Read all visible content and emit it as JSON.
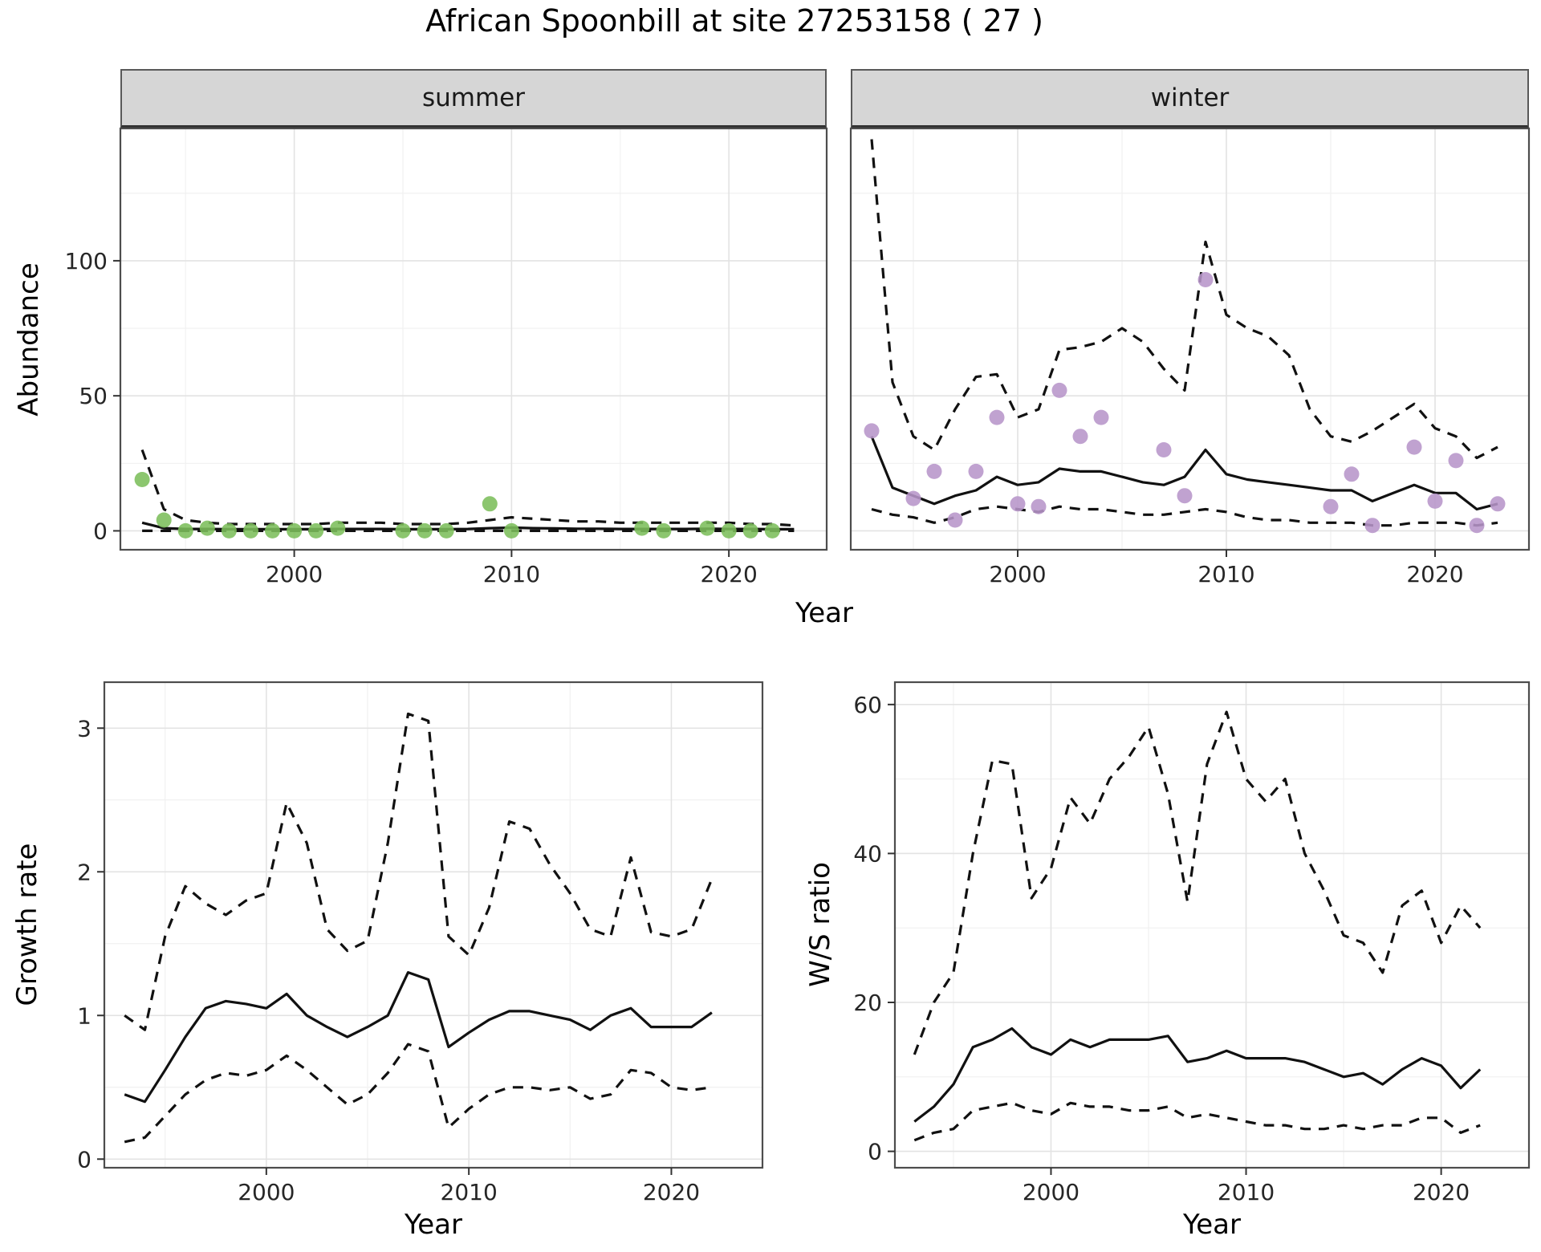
{
  "title": "African Spoonbill at site 27253158 ( 27 )",
  "colors": {
    "line": "#111111",
    "summer_points": "#7CBE5B",
    "winter_points": "#B795C9",
    "strip_background": "#D6D6D6",
    "panel_border": "#4D4D4D",
    "grid_major": "#E3E3E3",
    "grid_minor": "#F1F1F1"
  },
  "chart_data": [
    {
      "id": "abundance-summer",
      "type": "line",
      "facet": "summer",
      "xlabel": "Year",
      "ylabel": "Abundance",
      "xlim": [
        1992,
        2024.5
      ],
      "ylim": [
        -7,
        149
      ],
      "xticks": [
        2000,
        2010,
        2020
      ],
      "yticks": [
        0,
        50,
        100
      ],
      "series": [
        {
          "name": "upper-ci",
          "style": "dashed",
          "x": [
            1993,
            1994,
            1995,
            1996,
            1997,
            1998,
            1999,
            2000,
            2001,
            2002,
            2003,
            2004,
            2005,
            2006,
            2007,
            2008,
            2009,
            2010,
            2011,
            2012,
            2013,
            2014,
            2015,
            2016,
            2017,
            2018,
            2019,
            2020,
            2021,
            2022,
            2023
          ],
          "y": [
            30,
            8,
            4,
            3,
            2.5,
            2.5,
            2.5,
            2.5,
            2.5,
            3,
            3,
            3,
            2.5,
            2.5,
            2.5,
            3,
            4,
            5,
            4.5,
            4,
            3.5,
            3.5,
            3,
            3,
            3,
            3,
            3,
            3,
            2.5,
            2.5,
            2
          ]
        },
        {
          "name": "mean",
          "style": "solid",
          "x": [
            1993,
            1994,
            1995,
            1996,
            1997,
            1998,
            1999,
            2000,
            2001,
            2002,
            2003,
            2004,
            2005,
            2006,
            2007,
            2008,
            2009,
            2010,
            2011,
            2012,
            2013,
            2014,
            2015,
            2016,
            2017,
            2018,
            2019,
            2020,
            2021,
            2022,
            2023
          ],
          "y": [
            3,
            1,
            0.7,
            0.7,
            0.6,
            0.6,
            0.6,
            0.6,
            0.6,
            0.7,
            0.7,
            0.7,
            0.6,
            0.6,
            0.6,
            0.7,
            1,
            1.2,
            1,
            0.9,
            0.8,
            0.8,
            0.7,
            0.7,
            0.7,
            0.7,
            0.8,
            0.7,
            0.7,
            0.6,
            0.6
          ]
        },
        {
          "name": "lower-ci",
          "style": "dashed",
          "x": [
            1993,
            1994,
            1995,
            1996,
            1997,
            1998,
            1999,
            2000,
            2001,
            2002,
            2003,
            2004,
            2005,
            2006,
            2007,
            2008,
            2009,
            2010,
            2011,
            2012,
            2013,
            2014,
            2015,
            2016,
            2017,
            2018,
            2019,
            2020,
            2021,
            2022,
            2023
          ],
          "y": [
            0,
            0,
            0,
            0,
            0,
            0,
            0,
            0,
            0,
            0,
            0,
            0,
            0,
            0,
            0,
            0,
            0,
            0,
            0,
            0,
            0,
            0,
            0,
            0,
            0,
            0,
            0,
            0,
            0,
            0,
            0
          ]
        }
      ],
      "points": {
        "name": "observed-counts",
        "color": "#7CBE5B",
        "x": [
          1993,
          1994,
          1995,
          1996,
          1997,
          1998,
          1999,
          2000,
          2001,
          2002,
          2005,
          2006,
          2007,
          2009,
          2010,
          2016,
          2017,
          2019,
          2020,
          2021,
          2022
        ],
        "y": [
          19,
          4,
          0,
          1,
          0,
          0,
          0,
          0,
          0,
          1,
          0,
          0,
          0,
          10,
          0,
          1,
          0,
          1,
          0,
          0,
          0
        ]
      }
    },
    {
      "id": "abundance-winter",
      "type": "line",
      "facet": "winter",
      "xlabel": "Year",
      "ylabel": "Abundance",
      "xlim": [
        1992,
        2024.5
      ],
      "ylim": [
        -7,
        149
      ],
      "xticks": [
        2000,
        2010,
        2020
      ],
      "yticks": [
        0,
        50,
        100
      ],
      "series": [
        {
          "name": "upper-ci",
          "style": "dashed",
          "x": [
            1993,
            1994,
            1995,
            1996,
            1997,
            1998,
            1999,
            2000,
            2001,
            2002,
            2003,
            2004,
            2005,
            2006,
            2007,
            2008,
            2009,
            2010,
            2011,
            2012,
            2013,
            2014,
            2015,
            2016,
            2017,
            2018,
            2019,
            2020,
            2021,
            2022,
            2023
          ],
          "y": [
            145,
            55,
            35,
            30,
            45,
            57,
            58,
            42,
            45,
            67,
            68,
            70,
            75,
            70,
            60,
            52,
            107,
            80,
            75,
            72,
            65,
            45,
            35,
            33,
            37,
            42,
            47,
            38,
            35,
            27,
            31
          ]
        },
        {
          "name": "mean",
          "style": "solid",
          "x": [
            1993,
            1994,
            1995,
            1996,
            1997,
            1998,
            1999,
            2000,
            2001,
            2002,
            2003,
            2004,
            2005,
            2006,
            2007,
            2008,
            2009,
            2010,
            2011,
            2012,
            2013,
            2014,
            2015,
            2016,
            2017,
            2018,
            2019,
            2020,
            2021,
            2022,
            2023
          ],
          "y": [
            35,
            16,
            13,
            10,
            13,
            15,
            20,
            17,
            18,
            23,
            22,
            22,
            20,
            18,
            17,
            20,
            30,
            21,
            19,
            18,
            17,
            16,
            15,
            15,
            11,
            14,
            17,
            14,
            14,
            8,
            10
          ]
        },
        {
          "name": "lower-ci",
          "style": "dashed",
          "x": [
            1993,
            1994,
            1995,
            1996,
            1997,
            1998,
            1999,
            2000,
            2001,
            2002,
            2003,
            2004,
            2005,
            2006,
            2007,
            2008,
            2009,
            2010,
            2011,
            2012,
            2013,
            2014,
            2015,
            2016,
            2017,
            2018,
            2019,
            2020,
            2021,
            2022,
            2023
          ],
          "y": [
            8,
            6,
            5,
            3,
            5,
            8,
            9,
            8,
            7,
            9,
            8,
            8,
            7,
            6,
            6,
            7,
            8,
            7,
            5,
            4,
            4,
            3,
            3,
            3,
            2,
            2,
            3,
            3,
            3,
            2,
            3
          ]
        }
      ],
      "points": {
        "name": "observed-counts",
        "color": "#B795C9",
        "x": [
          1993,
          1995,
          1996,
          1997,
          1998,
          1999,
          2000,
          2001,
          2002,
          2003,
          2004,
          2007,
          2008,
          2009,
          2015,
          2016,
          2017,
          2019,
          2020,
          2021,
          2022,
          2023
        ],
        "y": [
          37,
          12,
          22,
          4,
          22,
          42,
          10,
          9,
          52,
          35,
          42,
          30,
          13,
          93,
          9,
          21,
          2,
          31,
          11,
          26,
          2,
          10
        ]
      }
    },
    {
      "id": "growth-rate",
      "type": "line",
      "facet": null,
      "xlabel": "Year",
      "ylabel": "Growth rate",
      "xlim": [
        1992,
        2024.5
      ],
      "ylim": [
        -0.06,
        3.32
      ],
      "xticks": [
        2000,
        2010,
        2020
      ],
      "yticks": [
        0,
        1,
        2,
        3
      ],
      "series": [
        {
          "name": "upper-ci",
          "style": "dashed",
          "x": [
            1993,
            1994,
            1995,
            1996,
            1997,
            1998,
            1999,
            2000,
            2001,
            2002,
            2003,
            2004,
            2005,
            2006,
            2007,
            2008,
            2009,
            2010,
            2011,
            2012,
            2013,
            2014,
            2015,
            2016,
            2017,
            2018,
            2019,
            2020,
            2021,
            2022
          ],
          "y": [
            1.0,
            0.9,
            1.55,
            1.9,
            1.78,
            1.7,
            1.8,
            1.85,
            2.48,
            2.2,
            1.6,
            1.45,
            1.52,
            2.2,
            3.1,
            3.05,
            1.55,
            1.42,
            1.75,
            2.35,
            2.3,
            2.05,
            1.85,
            1.6,
            1.55,
            2.1,
            1.58,
            1.55,
            1.6,
            1.95
          ]
        },
        {
          "name": "mean",
          "style": "solid",
          "x": [
            1993,
            1994,
            1995,
            1996,
            1997,
            1998,
            1999,
            2000,
            2001,
            2002,
            2003,
            2004,
            2005,
            2006,
            2007,
            2008,
            2009,
            2010,
            2011,
            2012,
            2013,
            2014,
            2015,
            2016,
            2017,
            2018,
            2019,
            2020,
            2021,
            2022
          ],
          "y": [
            0.45,
            0.4,
            0.62,
            0.85,
            1.05,
            1.1,
            1.08,
            1.05,
            1.15,
            1.0,
            0.92,
            0.85,
            0.92,
            1.0,
            1.3,
            1.25,
            0.78,
            0.88,
            0.97,
            1.03,
            1.03,
            1.0,
            0.97,
            0.9,
            1.0,
            1.05,
            0.92,
            0.92,
            0.92,
            1.02
          ]
        },
        {
          "name": "lower-ci",
          "style": "dashed",
          "x": [
            1993,
            1994,
            1995,
            1996,
            1997,
            1998,
            1999,
            2000,
            2001,
            2002,
            2003,
            2004,
            2005,
            2006,
            2007,
            2008,
            2009,
            2010,
            2011,
            2012,
            2013,
            2014,
            2015,
            2016,
            2017,
            2018,
            2019,
            2020,
            2021,
            2022
          ],
          "y": [
            0.12,
            0.15,
            0.3,
            0.45,
            0.55,
            0.6,
            0.58,
            0.62,
            0.72,
            0.62,
            0.5,
            0.38,
            0.45,
            0.6,
            0.8,
            0.75,
            0.22,
            0.35,
            0.45,
            0.5,
            0.5,
            0.48,
            0.5,
            0.42,
            0.45,
            0.62,
            0.6,
            0.5,
            0.48,
            0.5
          ]
        }
      ],
      "points": null
    },
    {
      "id": "ws-ratio",
      "type": "line",
      "facet": null,
      "xlabel": "Year",
      "ylabel": "W/S ratio",
      "xlim": [
        1992,
        2024.5
      ],
      "ylim": [
        -2.2,
        63
      ],
      "xticks": [
        2000,
        2010,
        2020
      ],
      "yticks": [
        0,
        20,
        40,
        60
      ],
      "series": [
        {
          "name": "upper-ci",
          "style": "dashed",
          "x": [
            1993,
            1994,
            1995,
            1996,
            1997,
            1998,
            1999,
            2000,
            2001,
            2002,
            2003,
            2004,
            2005,
            2006,
            2007,
            2008,
            2009,
            2010,
            2011,
            2012,
            2013,
            2014,
            2015,
            2016,
            2017,
            2018,
            2019,
            2020,
            2021,
            2022
          ],
          "y": [
            13,
            20,
            24,
            40,
            52.5,
            52,
            34,
            38,
            47.5,
            44,
            50,
            53,
            57,
            48,
            33.5,
            52,
            59,
            50,
            47,
            50,
            40,
            35,
            29,
            28,
            24,
            33,
            35,
            28,
            33,
            30
          ]
        },
        {
          "name": "mean",
          "style": "solid",
          "x": [
            1993,
            1994,
            1995,
            1996,
            1997,
            1998,
            1999,
            2000,
            2001,
            2002,
            2003,
            2004,
            2005,
            2006,
            2007,
            2008,
            2009,
            2010,
            2011,
            2012,
            2013,
            2014,
            2015,
            2016,
            2017,
            2018,
            2019,
            2020,
            2021,
            2022
          ],
          "y": [
            4,
            6,
            9,
            14,
            15,
            16.5,
            14,
            13,
            15,
            14,
            15,
            15,
            15,
            15.5,
            12,
            12.5,
            13.5,
            12.5,
            12.5,
            12.5,
            12,
            11,
            10,
            10.5,
            9,
            11,
            12.5,
            11.5,
            8.5,
            11
          ]
        },
        {
          "name": "lower-ci",
          "style": "dashed",
          "x": [
            1993,
            1994,
            1995,
            1996,
            1997,
            1998,
            1999,
            2000,
            2001,
            2002,
            2003,
            2004,
            2005,
            2006,
            2007,
            2008,
            2009,
            2010,
            2011,
            2012,
            2013,
            2014,
            2015,
            2016,
            2017,
            2018,
            2019,
            2020,
            2021,
            2022
          ],
          "y": [
            1.5,
            2.5,
            3,
            5.5,
            6,
            6.5,
            5.5,
            5,
            6.5,
            6,
            6,
            5.5,
            5.5,
            6,
            4.5,
            5,
            4.5,
            4,
            3.5,
            3.5,
            3,
            3,
            3.5,
            3,
            3.5,
            3.5,
            4.5,
            4.5,
            2.5,
            3.5
          ]
        }
      ],
      "points": null
    }
  ]
}
